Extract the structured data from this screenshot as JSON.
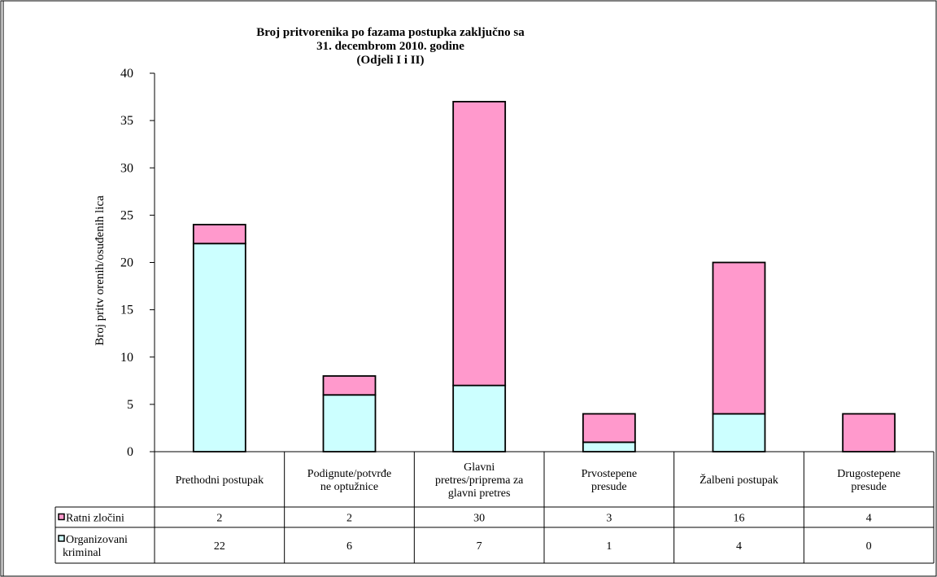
{
  "chart_data": {
    "type": "bar",
    "stacked": true,
    "title": [
      "Broj pritvorenika po fazama postupka zaključno sa",
      "31. decembrom 2010. godine",
      "(Odjeli I i II)"
    ],
    "ylabel": "Broj pritv orenih/osuđenih lica",
    "xlabel": "",
    "ylim": [
      0,
      40
    ],
    "yticks": [
      0,
      5,
      10,
      15,
      20,
      25,
      30,
      35,
      40
    ],
    "categories": [
      [
        "Prethodni postupak"
      ],
      [
        "Podignute/potvrđe",
        "ne optužnice"
      ],
      [
        "Glavni",
        "pretres/priprema za",
        "glavni pretres"
      ],
      [
        "Prvostepene",
        "presude"
      ],
      [
        "Žalbeni postupak"
      ],
      [
        "Drugostepene",
        "presude"
      ]
    ],
    "series": [
      {
        "name": "Organizovani kriminal",
        "legend_lines": [
          "Organizovani",
          "kriminal"
        ],
        "color": "#ccffff",
        "values": [
          22,
          6,
          7,
          1,
          4,
          0
        ]
      },
      {
        "name": "Ratni zločini",
        "legend_lines": [
          "Ratni zločini"
        ],
        "color": "#ff99cc",
        "values": [
          2,
          2,
          30,
          3,
          16,
          4
        ]
      }
    ],
    "table_order": [
      1,
      0
    ],
    "grid": false,
    "legend": "data-table"
  }
}
